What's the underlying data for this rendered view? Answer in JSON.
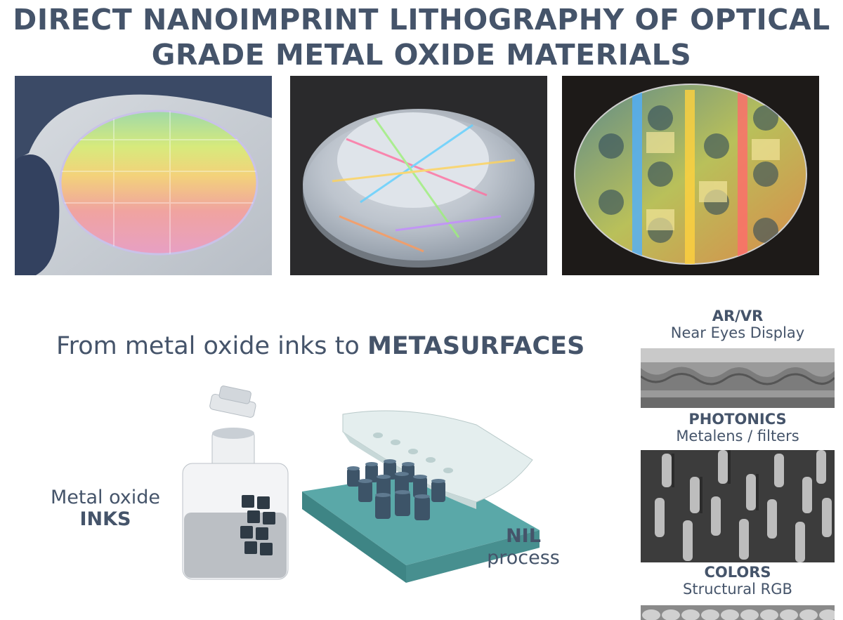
{
  "title": {
    "line1": "DIRECT NANOIMPRINT LITHOGRAPHY OF OPTICAL",
    "line2": "GRADE METAL OXIDE MATERIALS"
  },
  "subtitle": {
    "prefix": "From metal oxide inks to ",
    "emphasis": "METASURFACES"
  },
  "inks_label": {
    "line1": "Metal oxide",
    "line2": "INKS"
  },
  "nil_label": {
    "line1": "NIL",
    "line2": "process"
  },
  "applications": [
    {
      "heading": "AR/VR",
      "sub": "Near Eyes Display"
    },
    {
      "heading": "PHOTONICS",
      "sub": "Metalens / filters"
    },
    {
      "heading": "COLORS",
      "sub": "Structural RGB"
    }
  ],
  "colors": {
    "text": "#45546a",
    "substrate": "#4f9c9c",
    "pillar": "#3d5468",
    "stamp": "#dde9e9"
  }
}
